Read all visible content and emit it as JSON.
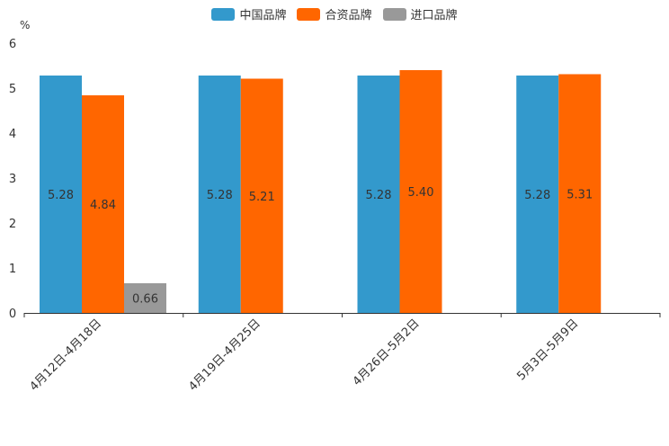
{
  "chart_data": {
    "type": "bar",
    "unit": "%",
    "categories": [
      "4月12日-4月18日",
      "4月19日-4月25日",
      "4月26日-5月2日",
      "5月3日-5月9日"
    ],
    "series": [
      {
        "name": "中国品牌",
        "color": "#3399cc",
        "values": [
          5.28,
          5.28,
          5.28,
          5.28
        ],
        "labels": [
          "5.28",
          "5.28",
          "5.28",
          "5.28"
        ]
      },
      {
        "name": "合资品牌",
        "color": "#ff6600",
        "values": [
          4.84,
          5.21,
          5.4,
          5.31
        ],
        "labels": [
          "4.84",
          "5.21",
          "5.40",
          "5.31"
        ]
      },
      {
        "name": "进口品牌",
        "color": "#999999",
        "values": [
          0.66,
          null,
          null,
          null
        ],
        "labels": [
          "0.66",
          null,
          null,
          null
        ]
      }
    ],
    "yticks": [
      "0",
      "1",
      "2",
      "3",
      "4",
      "5",
      "6"
    ],
    "ylim": [
      0,
      6
    ],
    "legend_position": "top-center"
  }
}
